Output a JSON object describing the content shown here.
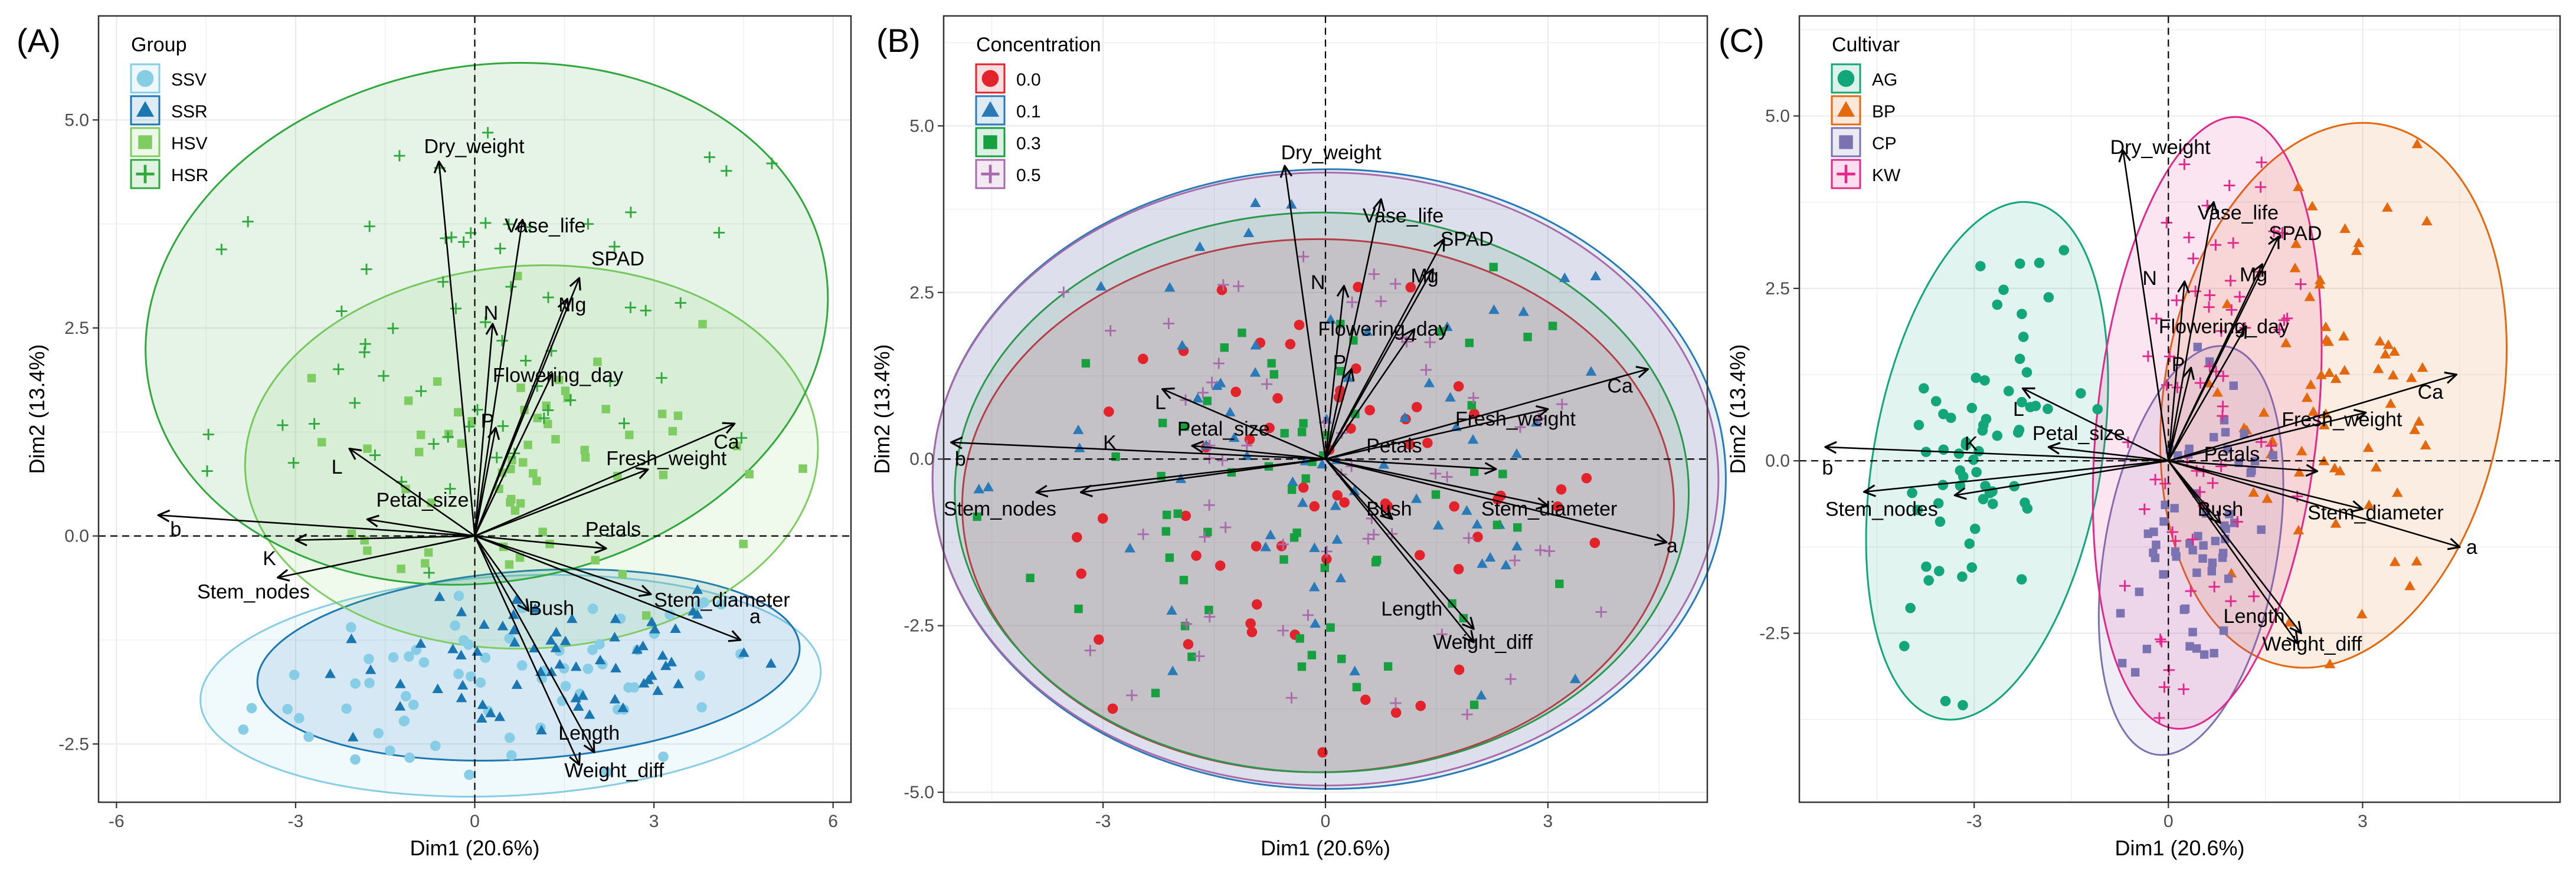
{
  "colors": {
    "panel_bg": "#ffffff",
    "grid": "#ebebeb",
    "axis_text": "#4d4d4d",
    "arrow": "#000000",
    "panel_border": "#333333",
    "SSV": "#87cde5",
    "SSR": "#1a77b2",
    "HSV": "#7fcd62",
    "HSR": "#2fa83c",
    "c00": "#e3232b",
    "c01": "#2a7ab8",
    "c03": "#17a040",
    "c05": "#a96aa9",
    "AG": "#12a67a",
    "BP": "#e3680e",
    "CP": "#7b73b1",
    "KW": "#e2288a"
  },
  "chart_data": [
    {
      "type": "scatter",
      "panel_label": "(A)",
      "xlabel": "Dim1 (20.6%)",
      "ylabel": "Dim2 (13.4%)",
      "xlim": [
        -6.3,
        6.3
      ],
      "ylim": [
        -3.2,
        6.25
      ],
      "xticks": [
        -6,
        -3,
        0,
        3,
        6
      ],
      "xtick_labels": [
        "-6",
        "-3",
        "0",
        "3",
        "6"
      ],
      "yticks": [
        -2.5,
        0,
        2.5,
        5
      ],
      "ytick_labels": [
        "-2.5",
        "0.0",
        "2.5",
        "5.0"
      ],
      "legend": {
        "title": "Group",
        "placement": "top-left",
        "entries": [
          "SSV",
          "SSR",
          "HSV",
          "HSR"
        ]
      },
      "series": [
        {
          "name": "SSV",
          "color_key": "SSV",
          "shape": "circle",
          "ellipse": {
            "cx": 0.6,
            "cy": -1.8,
            "rx": 5.2,
            "ry": 1.32,
            "angle": 3
          }
        },
        {
          "name": "SSR",
          "color_key": "SSR",
          "shape": "triangle",
          "ellipse": {
            "cx": 0.9,
            "cy": -1.55,
            "rx": 4.55,
            "ry": 1.13,
            "angle": 4
          }
        },
        {
          "name": "HSV",
          "color_key": "HSV",
          "shape": "square",
          "ellipse": {
            "cx": 0.95,
            "cy": 0.95,
            "rx": 4.8,
            "ry": 2.3,
            "angle": 3
          }
        },
        {
          "name": "HSR",
          "color_key": "HSR",
          "shape": "plus",
          "ellipse": {
            "cx": 0.2,
            "cy": 2.55,
            "rx": 5.75,
            "ry": 3.1,
            "angle": 10
          }
        }
      ],
      "loadings": [
        {
          "name": "Dry_weight",
          "x": -0.6,
          "y": 4.5,
          "lx": -0.85,
          "ly": 4.6
        },
        {
          "name": "Vase_life",
          "x": 0.8,
          "y": 3.8,
          "lx": 0.5,
          "ly": 3.65
        },
        {
          "name": "SPAD",
          "x": 1.75,
          "y": 3.1,
          "lx": 1.95,
          "ly": 3.25
        },
        {
          "name": "Mg",
          "x": 1.55,
          "y": 2.85,
          "lx": 1.4,
          "ly": 2.7
        },
        {
          "name": "N",
          "x": 0.3,
          "y": 2.55,
          "lx": 0.15,
          "ly": 2.6
        },
        {
          "name": "Flowering_day",
          "x": 1.3,
          "y": 1.95,
          "lx": 0.3,
          "ly": 1.85
        },
        {
          "name": "P",
          "x": 0.35,
          "y": 1.3,
          "lx": 0.1,
          "ly": 1.3
        },
        {
          "name": "Ca",
          "x": 4.35,
          "y": 1.35,
          "lx": 4.0,
          "ly": 1.05
        },
        {
          "name": "Fresh_weight",
          "x": 2.9,
          "y": 0.8,
          "lx": 2.2,
          "ly": 0.85
        },
        {
          "name": "L",
          "x": -2.1,
          "y": 1.05,
          "lx": -2.4,
          "ly": 0.75
        },
        {
          "name": "Petal_size",
          "x": -1.8,
          "y": 0.2,
          "lx": -1.65,
          "ly": 0.35
        },
        {
          "name": "Petals",
          "x": 2.2,
          "y": -0.15,
          "lx": 1.85,
          "ly": 0.0
        },
        {
          "name": "b",
          "x": -5.3,
          "y": 0.25,
          "lx": -5.1,
          "ly": 0.0
        },
        {
          "name": "K",
          "x": -3.3,
          "y": -0.5,
          "lx": -3.55,
          "ly": -0.35
        },
        {
          "name": "Stem_nodes",
          "x": -3.0,
          "y": -0.05,
          "lx": -4.65,
          "ly": -0.75
        },
        {
          "name": "Bush",
          "x": 0.9,
          "y": -0.9,
          "lx": 0.9,
          "ly": -0.95
        },
        {
          "name": "Stem_diameter",
          "x": 2.95,
          "y": -0.7,
          "lx": 3.0,
          "ly": -0.85
        },
        {
          "name": "a",
          "x": 4.45,
          "y": -1.25,
          "lx": 4.6,
          "ly": -1.05
        },
        {
          "name": "Length",
          "x": 2.0,
          "y": -2.6,
          "lx": 1.4,
          "ly": -2.45
        },
        {
          "name": "Weight_diff",
          "x": 1.75,
          "y": -2.75,
          "lx": 1.5,
          "ly": -2.9
        }
      ]
    },
    {
      "type": "scatter",
      "panel_label": "(B)",
      "xlabel": "Dim1 (20.6%)",
      "ylabel": "Dim2 (13.4%)",
      "xlim": [
        -5.15,
        5.15
      ],
      "ylim": [
        -5.15,
        6.65
      ],
      "xticks": [
        -3,
        0,
        3
      ],
      "xtick_labels": [
        "-3",
        "0",
        "3"
      ],
      "yticks": [
        -5,
        -2.5,
        0,
        2.5,
        5
      ],
      "ytick_labels": [
        "-5.0",
        "-2.5",
        "0.0",
        "2.5",
        "5.0"
      ],
      "legend": {
        "title": "Concentration",
        "placement": "top-left",
        "entries": [
          "0.0",
          "0.1",
          "0.3",
          "0.5"
        ]
      },
      "series": [
        {
          "name": "0.0",
          "color_key": "c00",
          "shape": "circle",
          "ellipse": {
            "cx": -0.1,
            "cy": -0.7,
            "rx": 4.8,
            "ry": 4.0,
            "angle": 0
          }
        },
        {
          "name": "0.1",
          "color_key": "c01",
          "shape": "triangle",
          "ellipse": {
            "cx": 0.05,
            "cy": -0.3,
            "rx": 5.35,
            "ry": 4.65,
            "angle": 0
          }
        },
        {
          "name": "0.3",
          "color_key": "c03",
          "shape": "square",
          "ellipse": {
            "cx": -0.05,
            "cy": -0.5,
            "rx": 4.95,
            "ry": 4.2,
            "angle": 0
          }
        },
        {
          "name": "0.5",
          "color_key": "c05",
          "shape": "plus",
          "ellipse": {
            "cx": 0.0,
            "cy": -0.3,
            "rx": 5.3,
            "ry": 4.6,
            "angle": 0
          }
        }
      ],
      "loadings": [
        {
          "name": "Dry_weight",
          "x": -0.55,
          "y": 4.4,
          "lx": -0.6,
          "ly": 4.5
        },
        {
          "name": "Vase_life",
          "x": 0.75,
          "y": 3.9,
          "lx": 0.5,
          "ly": 3.55
        },
        {
          "name": "SPAD",
          "x": 1.6,
          "y": 3.3,
          "lx": 1.55,
          "ly": 3.2
        },
        {
          "name": "Mg",
          "x": 1.45,
          "y": 2.85,
          "lx": 1.15,
          "ly": 2.65
        },
        {
          "name": "N",
          "x": 0.25,
          "y": 2.6,
          "lx": -0.2,
          "ly": 2.55
        },
        {
          "name": "Flowering_day",
          "x": 1.2,
          "y": 1.95,
          "lx": -0.1,
          "ly": 1.85
        },
        {
          "name": "P",
          "x": 0.35,
          "y": 1.35,
          "lx": 0.1,
          "ly": 1.35
        },
        {
          "name": "Ca",
          "x": 4.35,
          "y": 1.35,
          "lx": 3.8,
          "ly": 1.0
        },
        {
          "name": "Fresh_weight",
          "x": 3.0,
          "y": 0.75,
          "lx": 1.75,
          "ly": 0.5
        },
        {
          "name": "L",
          "x": -2.2,
          "y": 1.05,
          "lx": -2.3,
          "ly": 0.75
        },
        {
          "name": "Petal_size",
          "x": -1.8,
          "y": 0.2,
          "lx": -2.0,
          "ly": 0.35
        },
        {
          "name": "Petals",
          "x": 2.3,
          "y": -0.15,
          "lx": 0.55,
          "ly": 0.1
        },
        {
          "name": "b",
          "x": -5.05,
          "y": 0.25,
          "lx": -5.0,
          "ly": -0.1
        },
        {
          "name": "K",
          "x": -3.3,
          "y": -0.5,
          "lx": -3.0,
          "ly": 0.15
        },
        {
          "name": "Stem_nodes",
          "x": -3.9,
          "y": -0.5,
          "lx": -5.15,
          "ly": -0.85
        },
        {
          "name": "Bush",
          "x": 0.9,
          "y": -0.9,
          "lx": 0.55,
          "ly": -0.85
        },
        {
          "name": "Stem_diameter",
          "x": 3.0,
          "y": -0.7,
          "lx": 2.1,
          "ly": -0.85
        },
        {
          "name": "a",
          "x": 4.6,
          "y": -1.25,
          "lx": 4.6,
          "ly": -1.4
        },
        {
          "name": "Length",
          "x": 2.0,
          "y": -2.55,
          "lx": 0.75,
          "ly": -2.35
        },
        {
          "name": "Weight_diff",
          "x": 2.0,
          "y": -2.75,
          "lx": 1.45,
          "ly": -2.85
        }
      ]
    },
    {
      "type": "scatter",
      "panel_label": "(C)",
      "xlabel": "Dim1 (20.6%)",
      "ylabel": "Dim2 (13.4%)",
      "xlim": [
        -5.7,
        6.05
      ],
      "ylim": [
        -4.95,
        6.45
      ],
      "xticks": [
        -3,
        0,
        3
      ],
      "xtick_labels": [
        "-3",
        "0",
        "3"
      ],
      "yticks": [
        -2.5,
        0,
        2.5,
        5
      ],
      "ytick_labels": [
        "-2.5",
        "0.0",
        "2.5",
        "5.0"
      ],
      "legend": {
        "title": "Cultivar",
        "placement": "top-left",
        "entries": [
          "AG",
          "BP",
          "CP",
          "KW"
        ]
      },
      "series": [
        {
          "name": "AG",
          "color_key": "AG",
          "shape": "circle",
          "ellipse": {
            "cx": -2.8,
            "cy": 0.0,
            "rx": 4.05,
            "ry": 1.65,
            "angle": 80
          }
        },
        {
          "name": "BP",
          "color_key": "BP",
          "shape": "triangle",
          "ellipse": {
            "cx": 2.55,
            "cy": 0.95,
            "rx": 4.25,
            "ry": 2.45,
            "angle": 80
          }
        },
        {
          "name": "CP",
          "color_key": "CP",
          "shape": "square",
          "ellipse": {
            "cx": 0.35,
            "cy": -1.3,
            "rx": 3.2,
            "ry": 1.25,
            "angle": 80
          }
        },
        {
          "name": "KW",
          "color_key": "KW",
          "shape": "plus",
          "ellipse": {
            "cx": 0.6,
            "cy": 0.55,
            "rx": 4.75,
            "ry": 1.6,
            "angle": 84
          }
        }
      ],
      "loadings": [
        {
          "name": "Dry_weight",
          "x": -0.7,
          "y": 4.5,
          "lx": -0.9,
          "ly": 4.45
        },
        {
          "name": "Vase_life",
          "x": 0.7,
          "y": 3.75,
          "lx": 0.45,
          "ly": 3.5
        },
        {
          "name": "SPAD",
          "x": 1.7,
          "y": 3.25,
          "lx": 1.55,
          "ly": 3.2
        },
        {
          "name": "Mg",
          "x": 1.45,
          "y": 2.85,
          "lx": 1.1,
          "ly": 2.6
        },
        {
          "name": "N",
          "x": 0.25,
          "y": 2.6,
          "lx": -0.4,
          "ly": 2.55
        },
        {
          "name": "Flowering_day",
          "x": 1.2,
          "y": 1.95,
          "lx": -0.15,
          "ly": 1.85
        },
        {
          "name": "P",
          "x": 0.35,
          "y": 1.35,
          "lx": 0.05,
          "ly": 1.3
        },
        {
          "name": "Ca",
          "x": 4.45,
          "y": 1.25,
          "lx": 3.85,
          "ly": 0.9
        },
        {
          "name": "Fresh_weight",
          "x": 3.05,
          "y": 0.7,
          "lx": 1.75,
          "ly": 0.5
        },
        {
          "name": "L",
          "x": -2.25,
          "y": 1.05,
          "lx": -2.4,
          "ly": 0.65
        },
        {
          "name": "Petal_size",
          "x": -1.85,
          "y": 0.2,
          "lx": -2.1,
          "ly": 0.3
        },
        {
          "name": "Petals",
          "x": 2.3,
          "y": -0.15,
          "lx": 0.55,
          "ly": 0.0
        },
        {
          "name": "b",
          "x": -5.3,
          "y": 0.2,
          "lx": -5.35,
          "ly": -0.2
        },
        {
          "name": "K",
          "x": -3.3,
          "y": -0.5,
          "lx": -3.15,
          "ly": 0.15
        },
        {
          "name": "Stem_nodes",
          "x": -4.7,
          "y": -0.45,
          "lx": -5.3,
          "ly": -0.8
        },
        {
          "name": "Bush",
          "x": 0.8,
          "y": -0.9,
          "lx": 0.45,
          "ly": -0.8
        },
        {
          "name": "Stem_diameter",
          "x": 3.0,
          "y": -0.7,
          "lx": 2.15,
          "ly": -0.85
        },
        {
          "name": "a",
          "x": 4.5,
          "y": -1.25,
          "lx": 4.6,
          "ly": -1.35
        },
        {
          "name": "Length",
          "x": 2.05,
          "y": -2.5,
          "lx": 0.85,
          "ly": -2.35
        },
        {
          "name": "Weight_diff",
          "x": 2.0,
          "y": -2.65,
          "lx": 1.45,
          "ly": -2.75
        }
      ]
    }
  ]
}
